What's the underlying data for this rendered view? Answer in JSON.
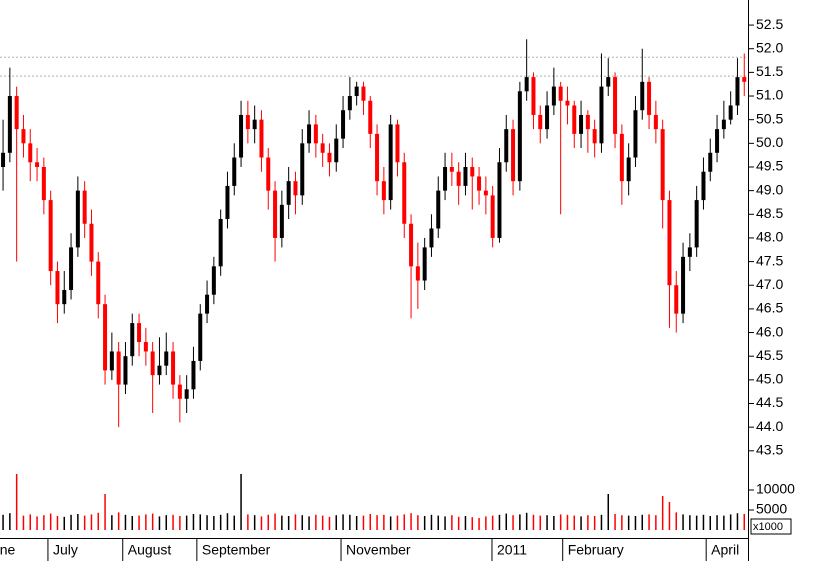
{
  "chart_data": {
    "type": "candlestick",
    "open": [
      49.5,
      49.8,
      51.0,
      50.3,
      50.0,
      49.6,
      49.5,
      48.8,
      47.3,
      46.6,
      46.9,
      47.8,
      49.0,
      48.3,
      47.5,
      46.6,
      45.2,
      45.6,
      44.9,
      45.5,
      46.2,
      45.8,
      45.6,
      45.1,
      45.3,
      45.6,
      44.9,
      44.6,
      44.8,
      45.4,
      46.4,
      46.8,
      47.4,
      48.4,
      49.1,
      49.7,
      50.6,
      50.3,
      50.5,
      49.7,
      49.0,
      48.0,
      48.7,
      49.2,
      48.9,
      50.0,
      50.4,
      50.0,
      49.8,
      49.6,
      50.1,
      50.7,
      51.0,
      51.2,
      50.9,
      50.2,
      49.2,
      48.8,
      50.4,
      49.6,
      48.3,
      47.4,
      47.1,
      47.8,
      48.2,
      49.0,
      49.5,
      49.4,
      49.1,
      49.5,
      49.3,
      49.0,
      48.9,
      48.0,
      49.6,
      50.3,
      49.2,
      51.1,
      51.4,
      50.6,
      50.3,
      50.8,
      51.2,
      50.9,
      50.8,
      50.2,
      50.6,
      50.3,
      50.0,
      51.2,
      51.4,
      50.2,
      49.2,
      49.7,
      50.7,
      51.3,
      50.6,
      50.3,
      48.8,
      47.0,
      46.4,
      47.6,
      47.8,
      48.8,
      49.4,
      49.8,
      50.3,
      50.5,
      50.8,
      51.4
    ],
    "high": [
      50.5,
      51.6,
      51.2,
      50.6,
      50.3,
      49.9,
      49.7,
      49.0,
      47.5,
      47.3,
      48.1,
      49.3,
      49.2,
      48.6,
      47.7,
      46.8,
      46.0,
      45.8,
      45.8,
      46.4,
      46.4,
      46.1,
      45.8,
      45.9,
      46.0,
      45.8,
      45.1,
      45.1,
      45.7,
      46.6,
      47.1,
      47.6,
      48.6,
      49.4,
      50.0,
      50.9,
      50.9,
      50.8,
      50.7,
      49.9,
      49.2,
      49.0,
      49.5,
      49.4,
      50.3,
      50.7,
      50.6,
      50.2,
      50.0,
      50.4,
      51.0,
      51.4,
      51.3,
      51.3,
      51.0,
      50.4,
      49.5,
      50.6,
      50.5,
      49.8,
      48.5,
      47.9,
      48.0,
      48.5,
      49.3,
      49.8,
      49.8,
      49.6,
      49.8,
      49.7,
      49.5,
      49.3,
      49.1,
      49.9,
      50.6,
      50.5,
      51.3,
      52.2,
      51.5,
      50.8,
      51.1,
      51.6,
      51.3,
      51.2,
      50.9,
      50.9,
      50.7,
      50.5,
      51.9,
      51.8,
      51.5,
      50.4,
      50.0,
      51.0,
      52.0,
      51.4,
      50.9,
      50.5,
      49.0,
      47.3,
      47.9,
      48.1,
      49.1,
      49.7,
      50.1,
      50.6,
      50.9,
      51.1,
      51.8,
      51.9
    ],
    "low": [
      49.0,
      49.6,
      47.5,
      49.7,
      49.2,
      49.2,
      48.5,
      47.0,
      46.2,
      46.4,
      46.7,
      47.6,
      48.0,
      47.2,
      46.3,
      44.9,
      45.0,
      44.0,
      44.7,
      45.3,
      45.5,
      45.3,
      44.3,
      44.9,
      45.1,
      44.6,
      44.1,
      44.3,
      44.6,
      45.2,
      46.2,
      46.6,
      47.2,
      48.2,
      48.9,
      49.5,
      50.0,
      50.0,
      49.4,
      48.6,
      47.5,
      47.8,
      48.4,
      48.5,
      48.7,
      49.8,
      49.7,
      49.5,
      49.3,
      49.4,
      49.9,
      50.5,
      50.8,
      50.6,
      49.9,
      48.9,
      48.5,
      48.6,
      49.3,
      48.0,
      46.3,
      46.5,
      46.9,
      47.6,
      48.0,
      48.8,
      49.1,
      48.7,
      48.9,
      48.6,
      48.7,
      48.5,
      47.8,
      47.9,
      49.4,
      48.9,
      49.0,
      50.9,
      50.3,
      50.0,
      50.1,
      50.6,
      48.5,
      50.4,
      49.9,
      49.9,
      49.8,
      49.7,
      49.8,
      51.0,
      49.9,
      48.7,
      48.9,
      49.5,
      50.5,
      50.3,
      50.0,
      48.2,
      46.1,
      46.0,
      46.2,
      47.3,
      47.6,
      48.6,
      49.2,
      49.6,
      50.1,
      50.4,
      50.6,
      51.0
    ],
    "close": [
      49.8,
      51.0,
      50.3,
      50.0,
      49.6,
      49.5,
      48.8,
      47.3,
      46.6,
      46.9,
      47.8,
      49.0,
      48.3,
      47.5,
      46.6,
      45.2,
      45.6,
      44.9,
      45.5,
      46.2,
      45.8,
      45.6,
      45.1,
      45.3,
      45.6,
      44.9,
      44.6,
      44.8,
      45.4,
      46.4,
      46.8,
      47.4,
      48.4,
      49.1,
      49.7,
      50.6,
      50.3,
      50.5,
      49.7,
      49.0,
      48.0,
      48.7,
      49.2,
      48.9,
      50.0,
      50.4,
      50.0,
      49.8,
      49.6,
      50.1,
      50.7,
      51.0,
      51.2,
      50.9,
      50.2,
      49.2,
      48.8,
      50.4,
      49.6,
      48.3,
      47.4,
      47.1,
      47.8,
      48.2,
      49.0,
      49.5,
      49.4,
      49.1,
      49.5,
      49.3,
      49.0,
      48.9,
      48.0,
      49.6,
      50.3,
      49.2,
      51.1,
      51.4,
      50.6,
      50.3,
      50.8,
      51.2,
      50.9,
      50.8,
      50.2,
      50.6,
      50.3,
      50.0,
      51.2,
      51.4,
      50.2,
      49.2,
      49.7,
      50.7,
      51.3,
      50.6,
      50.3,
      48.8,
      47.0,
      46.4,
      47.6,
      47.8,
      48.8,
      49.4,
      49.8,
      50.3,
      50.5,
      50.8,
      51.4,
      51.3
    ],
    "volume": [
      3800,
      4200,
      14000,
      3600,
      3900,
      3400,
      3700,
      4100,
      3500,
      3300,
      3800,
      4000,
      3600,
      3900,
      4300,
      9000,
      3700,
      4400,
      3800,
      3500,
      3600,
      3900,
      4100,
      3400,
      3700,
      3800,
      3500,
      3600,
      4000,
      3900,
      3700,
      3500,
      3800,
      4200,
      3600,
      14000,
      3900,
      3700,
      3400,
      3800,
      4100,
      3600,
      3500,
      3900,
      3700,
      3400,
      3800,
      3600,
      3300,
      3700,
      3900,
      3800,
      3500,
      3600,
      4000,
      3700,
      3800,
      3400,
      3600,
      3900,
      4200,
      3700,
      3500,
      3800,
      3600,
      3400,
      3700,
      3300,
      3500,
      3200,
      3000,
      3400,
      3600,
      3800,
      4100,
      3700,
      3900,
      4300,
      3800,
      3600,
      3700,
      3500,
      3900,
      3800,
      3600,
      3400,
      3700,
      3500,
      3800,
      9000,
      4000,
      3700,
      3600,
      3500,
      3800,
      3900,
      3700,
      8500,
      7000,
      4400,
      3900,
      3700,
      3600,
      3800,
      3500,
      3700,
      3600,
      3900,
      4200,
      4000
    ],
    "up_color": "#000000",
    "down_color": "#ff0000",
    "xlim": [
      -0.45,
      109.55
    ],
    "xticks": [
      {
        "value": -3.4,
        "label": "June"
      },
      {
        "value": 6.6,
        "label": "July"
      },
      {
        "value": 17.6,
        "label": "August"
      },
      {
        "value": 28.5,
        "label": "September"
      },
      {
        "value": 49.7,
        "label": "November"
      },
      {
        "value": 71.9,
        "label": "2011"
      },
      {
        "value": 82.3,
        "label": "February"
      },
      {
        "value": 103.4,
        "label": "April"
      }
    ],
    "ylim": [
      43.2,
      53.03
    ],
    "yticks": [
      43.5,
      {
        "value": 44,
        "label": "44.0"
      },
      44.5,
      {
        "value": 45,
        "label": "45.0"
      },
      45.5,
      {
        "value": 46,
        "label": "46.0"
      },
      46.5,
      {
        "value": 47,
        "label": "47.0"
      },
      47.5,
      {
        "value": 48,
        "label": "48.0"
      },
      48.5,
      {
        "value": 49,
        "label": "49.0"
      },
      49.5,
      {
        "value": 50,
        "label": "50.0"
      },
      50.5,
      {
        "value": 51,
        "label": "51.0"
      },
      51.5,
      {
        "value": 52,
        "label": "52.0"
      },
      52.5
    ],
    "volume_lim": [
      0,
      16250
    ],
    "volume_ticks": [
      5000,
      10000
    ],
    "volume_unit": "x1000",
    "reference_lines": [
      51.42,
      51.82
    ]
  }
}
